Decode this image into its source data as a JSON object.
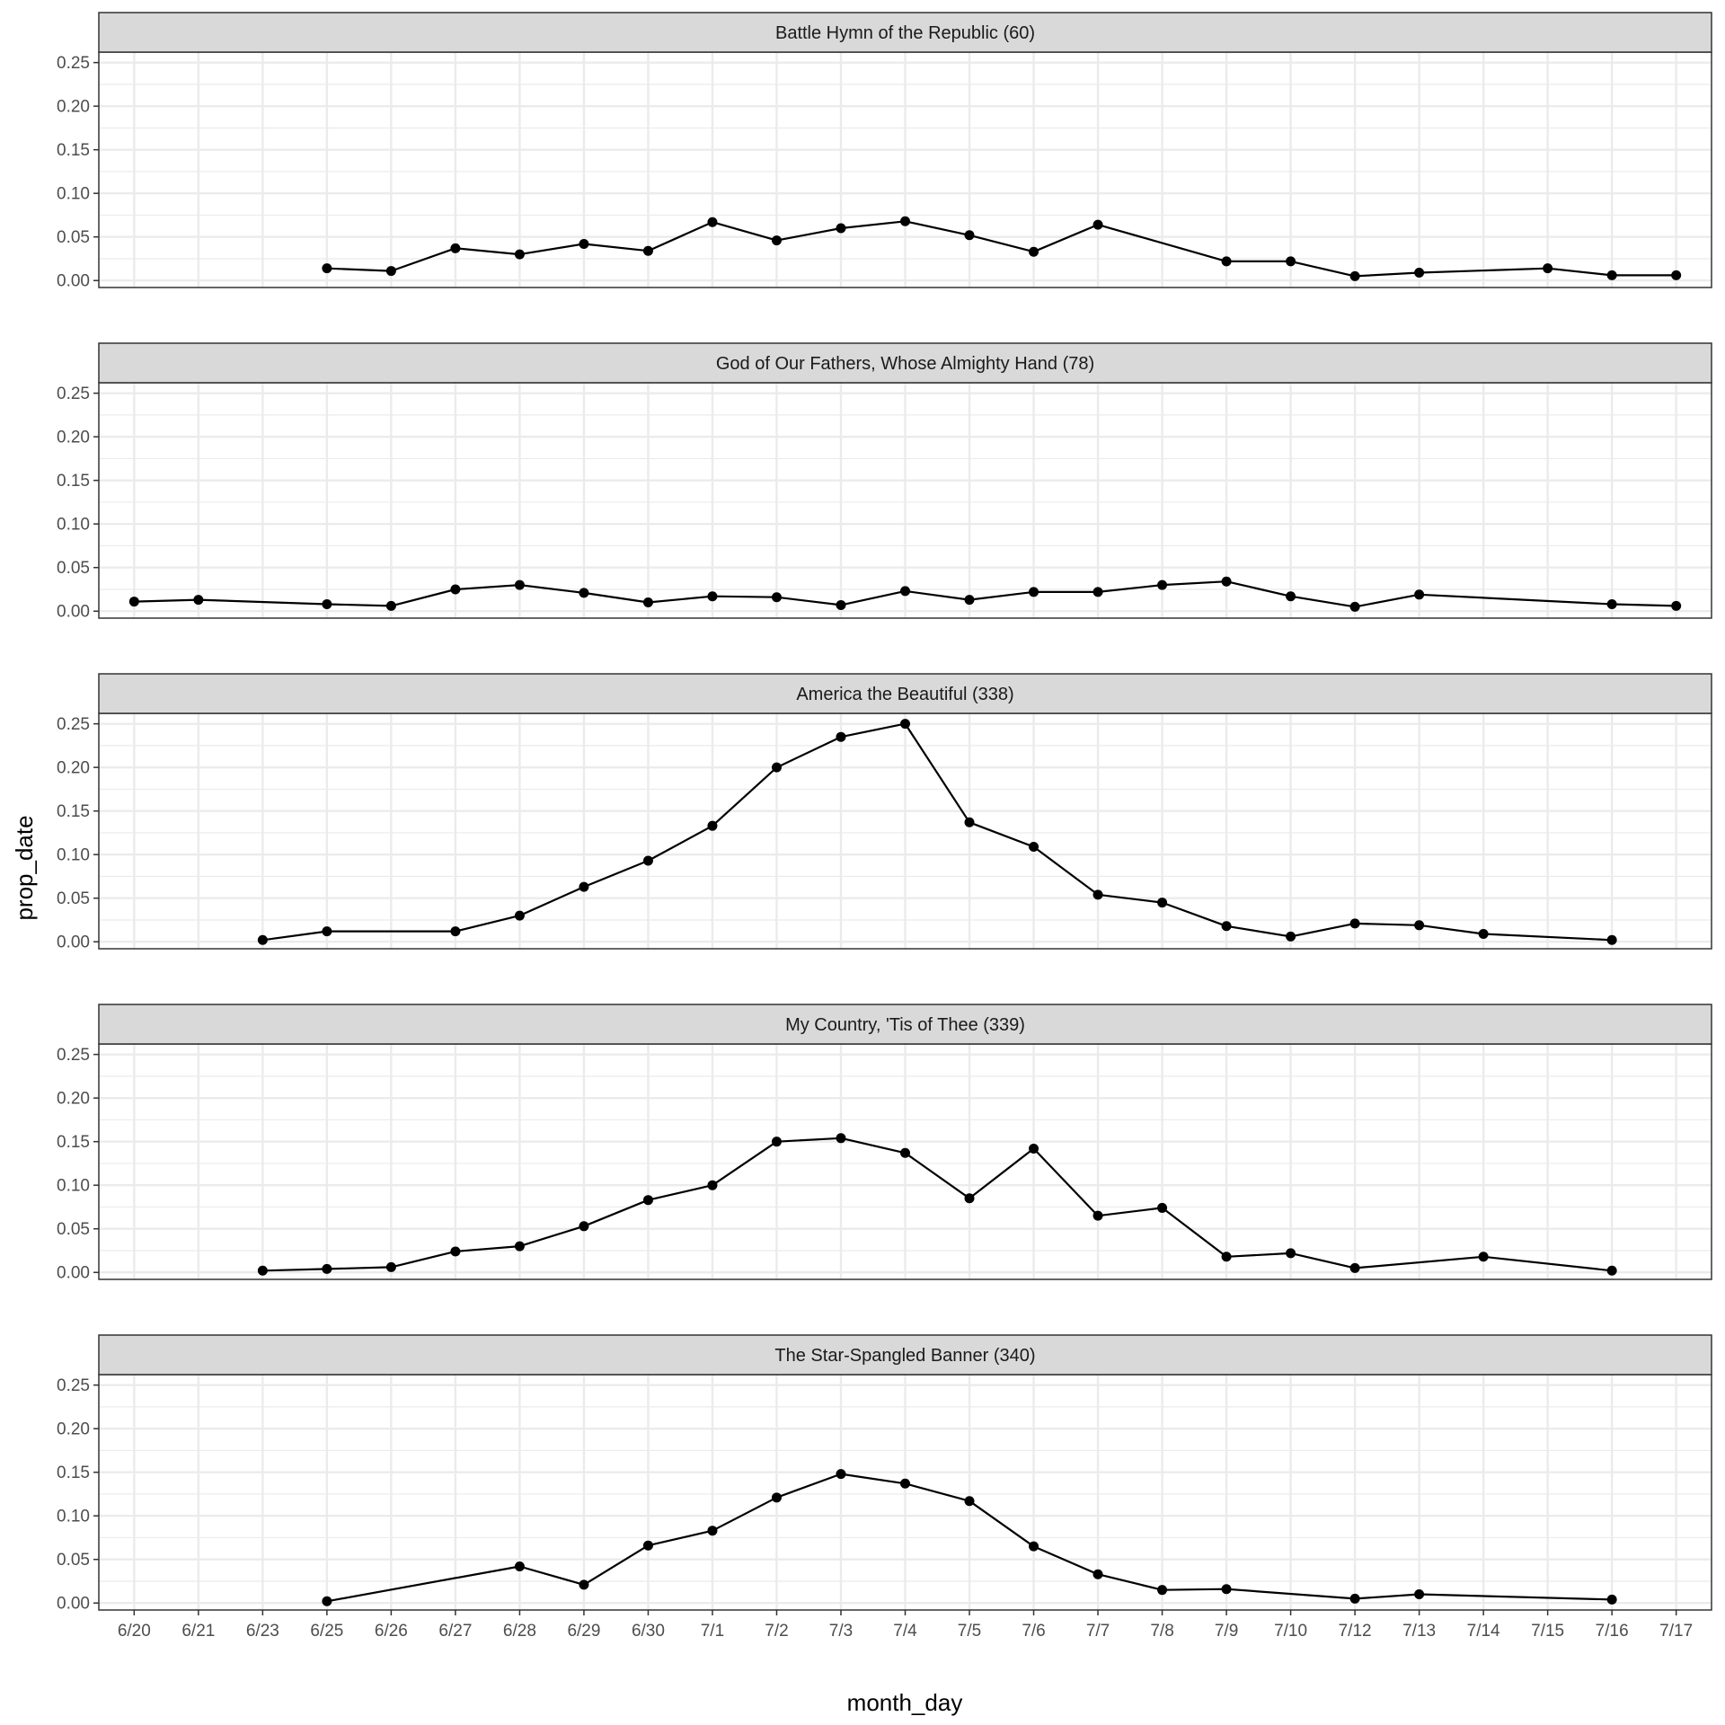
{
  "chart_data": {
    "type": "line",
    "xlabel": "month_day",
    "ylabel": "prop_date",
    "ylim": [
      -0.008,
      0.262
    ],
    "yticks": [
      0.0,
      0.05,
      0.1,
      0.15,
      0.2,
      0.25
    ],
    "ytick_labels": [
      "0.00",
      "0.05",
      "0.10",
      "0.15",
      "0.20",
      "0.25"
    ],
    "categories": [
      "6/20",
      "6/21",
      "6/23",
      "6/25",
      "6/26",
      "6/27",
      "6/28",
      "6/29",
      "6/30",
      "7/1",
      "7/2",
      "7/3",
      "7/4",
      "7/5",
      "7/6",
      "7/7",
      "7/8",
      "7/9",
      "7/10",
      "7/12",
      "7/13",
      "7/14",
      "7/15",
      "7/16",
      "7/17"
    ],
    "grid": true,
    "legend": "none",
    "colors": {
      "line": "#000000",
      "strip_fill": "#d9d9d9",
      "grid": "#ebebeb",
      "panel_border": "#333333"
    },
    "panels": [
      {
        "title": "Battle Hymn of the Republic (60)",
        "values": [
          null,
          null,
          null,
          0.014,
          0.011,
          0.037,
          0.03,
          0.042,
          0.034,
          0.067,
          0.046,
          0.06,
          0.068,
          0.052,
          0.033,
          0.064,
          null,
          0.022,
          0.022,
          0.005,
          0.009,
          null,
          0.014,
          0.006,
          0.006
        ]
      },
      {
        "title": "God of Our Fathers, Whose Almighty Hand (78)",
        "values": [
          0.011,
          0.013,
          null,
          0.008,
          0.006,
          0.025,
          0.03,
          0.021,
          0.01,
          0.017,
          0.016,
          0.007,
          0.023,
          0.013,
          0.022,
          0.022,
          0.03,
          0.034,
          0.017,
          0.005,
          0.019,
          null,
          null,
          0.008,
          0.006
        ]
      },
      {
        "title": "America the Beautiful (338)",
        "values": [
          null,
          null,
          0.002,
          0.012,
          null,
          0.012,
          0.03,
          0.063,
          0.093,
          0.133,
          0.2,
          0.235,
          0.25,
          0.137,
          0.109,
          0.054,
          0.045,
          0.018,
          0.006,
          0.021,
          0.019,
          0.009,
          null,
          0.002,
          null
        ]
      },
      {
        "title": "My Country, 'Tis of Thee (339)",
        "values": [
          null,
          null,
          0.002,
          0.004,
          0.006,
          0.024,
          0.03,
          0.053,
          0.083,
          0.1,
          0.15,
          0.154,
          0.137,
          0.085,
          0.142,
          0.065,
          0.074,
          0.018,
          0.022,
          0.005,
          null,
          0.018,
          null,
          0.002,
          null
        ]
      },
      {
        "title": "The Star-Spangled Banner (340)",
        "values": [
          null,
          null,
          null,
          0.002,
          null,
          null,
          0.042,
          0.021,
          0.066,
          0.083,
          0.121,
          0.148,
          0.137,
          0.117,
          0.065,
          0.033,
          0.015,
          0.016,
          null,
          0.005,
          0.01,
          null,
          null,
          0.004,
          null
        ]
      }
    ]
  }
}
